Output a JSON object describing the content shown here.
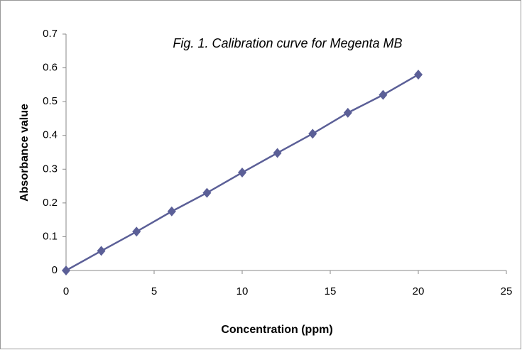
{
  "chart_data": {
    "type": "line",
    "title": "Fig. 1. Calibration curve for Megenta MB",
    "x_label": "Concentration (ppm)",
    "y_label": "Absorbance value",
    "x": [
      0,
      2,
      4,
      6,
      8,
      10,
      12,
      14,
      16,
      18,
      20
    ],
    "series": [
      {
        "name": "Absorbance",
        "color": "#5b5f97",
        "values": [
          0,
          0.058,
          0.115,
          0.175,
          0.23,
          0.29,
          0.348,
          0.405,
          0.467,
          0.52,
          0.58
        ]
      }
    ],
    "xlim": [
      0,
      25
    ],
    "xticks": [
      0,
      5,
      10,
      15,
      20,
      25
    ],
    "ylim": [
      0,
      0.7
    ],
    "yticks": [
      0,
      0.1,
      0.2,
      0.3,
      0.4,
      0.5,
      0.6,
      0.7
    ],
    "grid": false
  }
}
